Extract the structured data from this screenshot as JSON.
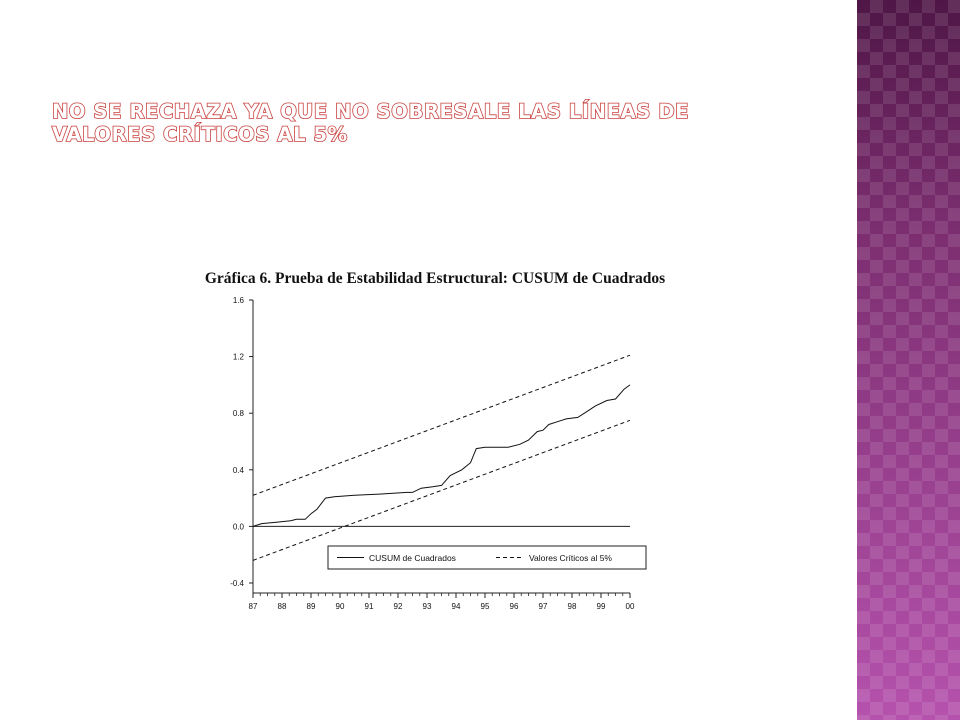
{
  "slide": {
    "title": "No se rechaza ya que no sobresale las líneas de valores críticos al 5%"
  },
  "colors": {
    "title_outline": "#c8413f",
    "band": "#8e3f86"
  },
  "chart_data": {
    "type": "line",
    "title": "Gráfica 6. Prueba de Estabilidad Estructural: CUSUM de Cuadrados",
    "xlabel": "",
    "ylabel": "",
    "ylim": [
      -0.4,
      1.6
    ],
    "yticks": [
      "1.6",
      "1.2",
      "0.8",
      "0.4",
      "0.0",
      "-0.4"
    ],
    "xlim": [
      1987,
      2000
    ],
    "xticks": [
      "87",
      "88",
      "89",
      "90",
      "91",
      "92",
      "93",
      "94",
      "95",
      "96",
      "97",
      "98",
      "99",
      "00"
    ],
    "grid": false,
    "legend": {
      "position": "bottom-right",
      "entries": [
        "CUSUM de Cuadrados",
        "Valores Críticos al 5%"
      ]
    },
    "series": [
      {
        "name": "CUSUM de Cuadrados",
        "style": "solid",
        "x": [
          1987,
          1987.3,
          1987.8,
          1988.3,
          1988.5,
          1988.8,
          1989.0,
          1989.2,
          1989.5,
          1989.8,
          1990.5,
          1991.5,
          1992.3,
          1992.5,
          1992.8,
          1993.2,
          1993.5,
          1993.8,
          1994.2,
          1994.5,
          1994.7,
          1995.0,
          1995.5,
          1995.8,
          1996.2,
          1996.5,
          1996.8,
          1997.0,
          1997.2,
          1997.5,
          1997.8,
          1998.2,
          1998.5,
          1998.8,
          1999.2,
          1999.5,
          1999.8,
          2000.0
        ],
        "values": [
          0.0,
          0.02,
          0.03,
          0.04,
          0.05,
          0.05,
          0.09,
          0.12,
          0.2,
          0.21,
          0.22,
          0.23,
          0.24,
          0.24,
          0.27,
          0.28,
          0.29,
          0.36,
          0.4,
          0.45,
          0.55,
          0.56,
          0.56,
          0.56,
          0.58,
          0.61,
          0.67,
          0.68,
          0.72,
          0.74,
          0.76,
          0.77,
          0.81,
          0.85,
          0.89,
          0.9,
          0.97,
          1.0
        ]
      },
      {
        "name": "Valores Críticos al 5%",
        "style": "dashed",
        "x": [
          1987,
          2000
        ],
        "values": [
          0.22,
          1.21
        ]
      },
      {
        "name": "Valores Críticos al 5%",
        "style": "dashed",
        "x": [
          1987,
          2000
        ],
        "values": [
          -0.24,
          0.75
        ]
      }
    ]
  }
}
